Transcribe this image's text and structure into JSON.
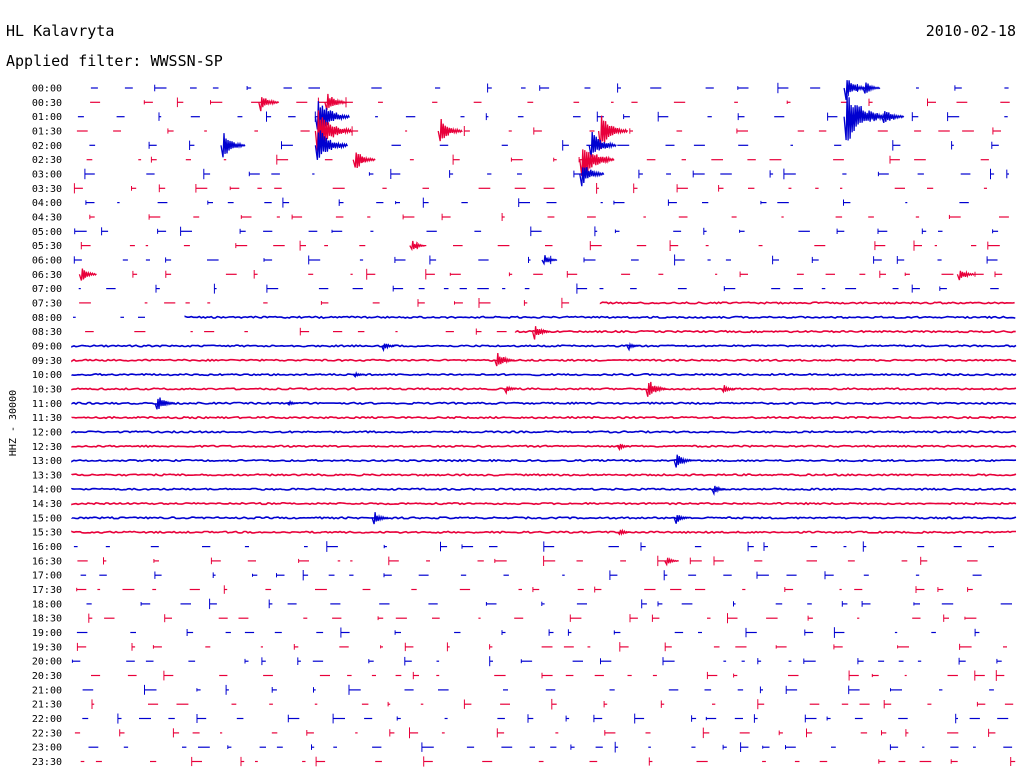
{
  "header": {
    "station": "HL Kalavryta",
    "date": "2010-02-18",
    "filter": "Applied filter: WWSSN-SP"
  },
  "chart_data": {
    "type": "helicorder",
    "title": "HL Kalavryta",
    "ylabel": "HHZ - 30000",
    "colors": {
      "odd": "#0000d0",
      "even": "#e8003a"
    },
    "rows": [
      {
        "label": "00:00",
        "state": "sparse",
        "events": [
          {
            "t": 0.82,
            "amp": 12
          },
          {
            "t": 0.84,
            "amp": 8
          }
        ]
      },
      {
        "label": "00:30",
        "state": "sparse",
        "events": [
          {
            "t": 0.2,
            "amp": 10
          },
          {
            "t": 0.27,
            "amp": 12
          }
        ]
      },
      {
        "label": "01:00",
        "state": "sparse",
        "events": [
          {
            "t": 0.26,
            "amp": 22
          },
          {
            "t": 0.82,
            "amp": 30
          },
          {
            "t": 0.86,
            "amp": 12
          }
        ]
      },
      {
        "label": "01:30",
        "state": "sparse",
        "events": [
          {
            "t": 0.26,
            "amp": 24
          },
          {
            "t": 0.39,
            "amp": 14
          },
          {
            "t": 0.56,
            "amp": 18
          }
        ]
      },
      {
        "label": "02:00",
        "state": "sparse",
        "events": [
          {
            "t": 0.16,
            "amp": 14
          },
          {
            "t": 0.26,
            "amp": 20
          },
          {
            "t": 0.55,
            "amp": 16
          }
        ]
      },
      {
        "label": "02:30",
        "state": "sparse",
        "events": [
          {
            "t": 0.3,
            "amp": 12
          },
          {
            "t": 0.54,
            "amp": 22
          }
        ]
      },
      {
        "label": "03:00",
        "state": "sparse",
        "events": [
          {
            "t": 0.54,
            "amp": 14
          }
        ]
      },
      {
        "label": "03:30",
        "state": "sparse",
        "events": []
      },
      {
        "label": "04:00",
        "state": "sparse",
        "events": []
      },
      {
        "label": "04:30",
        "state": "sparse",
        "events": []
      },
      {
        "label": "05:00",
        "state": "sparse",
        "events": []
      },
      {
        "label": "05:30",
        "state": "sparse",
        "events": [
          {
            "t": 0.36,
            "amp": 6
          }
        ]
      },
      {
        "label": "06:00",
        "state": "sparse",
        "events": [
          {
            "t": 0.5,
            "amp": 6
          }
        ]
      },
      {
        "label": "06:30",
        "state": "sparse",
        "events": [
          {
            "t": 0.01,
            "amp": 8
          },
          {
            "t": 0.94,
            "amp": 8
          }
        ]
      },
      {
        "label": "07:00",
        "state": "sparse",
        "events": []
      },
      {
        "label": "07:30",
        "state": "partial",
        "start": 0.56,
        "events": []
      },
      {
        "label": "08:00",
        "state": "partial",
        "start": 0.12,
        "events": []
      },
      {
        "label": "08:30",
        "state": "partial",
        "start": 0.47,
        "events": [
          {
            "t": 0.49,
            "amp": 8
          }
        ]
      },
      {
        "label": "09:00",
        "state": "continuous",
        "events": [
          {
            "t": 0.33,
            "amp": 5
          },
          {
            "t": 0.59,
            "amp": 4
          }
        ]
      },
      {
        "label": "09:30",
        "state": "continuous",
        "events": [
          {
            "t": 0.45,
            "amp": 10
          }
        ]
      },
      {
        "label": "10:00",
        "state": "continuous",
        "events": [
          {
            "t": 0.3,
            "amp": 3
          }
        ]
      },
      {
        "label": "10:30",
        "state": "continuous",
        "events": [
          {
            "t": 0.46,
            "amp": 4
          },
          {
            "t": 0.61,
            "amp": 11
          },
          {
            "t": 0.69,
            "amp": 5
          }
        ]
      },
      {
        "label": "11:00",
        "state": "continuous",
        "events": [
          {
            "t": 0.09,
            "amp": 10
          },
          {
            "t": 0.23,
            "amp": 3
          }
        ]
      },
      {
        "label": "11:30",
        "state": "continuous",
        "events": []
      },
      {
        "label": "12:00",
        "state": "continuous",
        "events": []
      },
      {
        "label": "12:30",
        "state": "continuous",
        "events": [
          {
            "t": 0.58,
            "amp": 4
          }
        ]
      },
      {
        "label": "13:00",
        "state": "continuous",
        "events": [
          {
            "t": 0.64,
            "amp": 9
          }
        ]
      },
      {
        "label": "13:30",
        "state": "continuous",
        "events": []
      },
      {
        "label": "14:00",
        "state": "continuous",
        "events": [
          {
            "t": 0.68,
            "amp": 5
          }
        ]
      },
      {
        "label": "14:30",
        "state": "continuous",
        "events": []
      },
      {
        "label": "15:00",
        "state": "continuous",
        "events": [
          {
            "t": 0.32,
            "amp": 7
          },
          {
            "t": 0.64,
            "amp": 6
          }
        ]
      },
      {
        "label": "15:30",
        "state": "continuous",
        "events": [
          {
            "t": 0.58,
            "amp": 4
          }
        ]
      },
      {
        "label": "16:00",
        "state": "sparse",
        "events": []
      },
      {
        "label": "16:30",
        "state": "sparse",
        "events": [
          {
            "t": 0.63,
            "amp": 5
          }
        ]
      },
      {
        "label": "17:00",
        "state": "sparse",
        "events": []
      },
      {
        "label": "17:30",
        "state": "sparse",
        "events": []
      },
      {
        "label": "18:00",
        "state": "sparse",
        "events": []
      },
      {
        "label": "18:30",
        "state": "sparse",
        "events": []
      },
      {
        "label": "19:00",
        "state": "sparse",
        "events": []
      },
      {
        "label": "19:30",
        "state": "sparse",
        "events": []
      },
      {
        "label": "20:00",
        "state": "sparse",
        "events": []
      },
      {
        "label": "20:30",
        "state": "sparse",
        "events": []
      },
      {
        "label": "21:00",
        "state": "sparse",
        "events": []
      },
      {
        "label": "21:30",
        "state": "sparse",
        "events": []
      },
      {
        "label": "22:00",
        "state": "sparse",
        "events": []
      },
      {
        "label": "22:30",
        "state": "sparse",
        "events": []
      },
      {
        "label": "23:00",
        "state": "sparse",
        "events": []
      },
      {
        "label": "23:30",
        "state": "sparse",
        "events": []
      }
    ]
  }
}
